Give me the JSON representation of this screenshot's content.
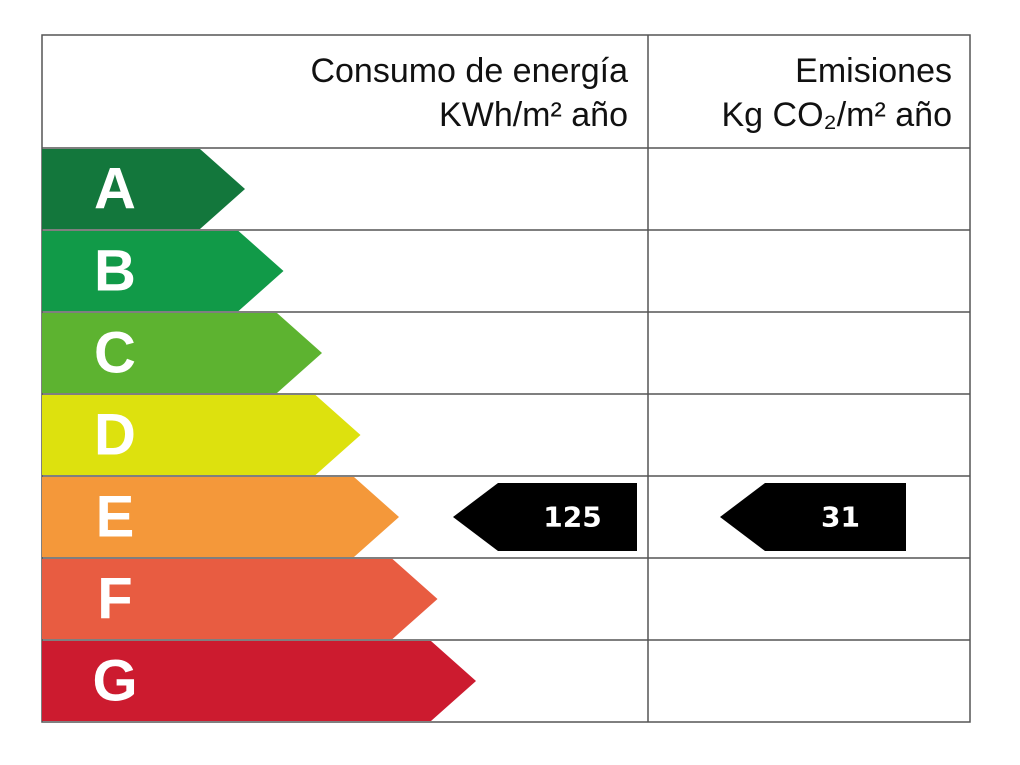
{
  "header": {
    "consumption": {
      "title": "Consumo de energía",
      "unit": "KWh/m² año"
    },
    "emissions": {
      "title": "Emisiones",
      "unit": "Kg CO₂/m² año"
    }
  },
  "classes": [
    {
      "label": "A",
      "color": "#13773c"
    },
    {
      "label": "B",
      "color": "#119a48"
    },
    {
      "label": "C",
      "color": "#5db330"
    },
    {
      "label": "D",
      "color": "#dde10e"
    },
    {
      "label": "E",
      "color": "#f4983a"
    },
    {
      "label": "F",
      "color": "#e85c41"
    },
    {
      "label": "G",
      "color": "#cc1b2f"
    }
  ],
  "consumption": {
    "value": 125,
    "class": "E"
  },
  "emissions": {
    "value": 31,
    "class": "E"
  }
}
